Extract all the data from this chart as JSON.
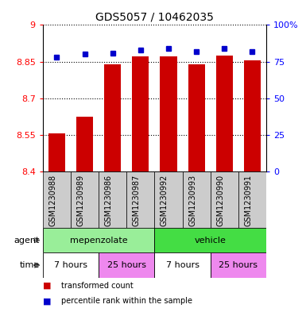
{
  "title": "GDS5057 / 10462035",
  "samples": [
    "GSM1230988",
    "GSM1230989",
    "GSM1230986",
    "GSM1230987",
    "GSM1230992",
    "GSM1230993",
    "GSM1230990",
    "GSM1230991"
  ],
  "red_values": [
    8.555,
    8.625,
    8.84,
    8.87,
    8.87,
    8.84,
    8.875,
    8.855
  ],
  "blue_values": [
    78,
    80,
    81,
    83,
    84,
    82,
    84,
    82
  ],
  "ylim_left": [
    8.4,
    9.0
  ],
  "ylim_right": [
    0,
    100
  ],
  "yticks_left": [
    8.4,
    8.55,
    8.7,
    8.85,
    9.0
  ],
  "ytick_labels_left": [
    "8.4",
    "8.55",
    "8.7",
    "8.85",
    "9"
  ],
  "yticks_right": [
    0,
    25,
    50,
    75,
    100
  ],
  "ytick_labels_right": [
    "0",
    "25",
    "50",
    "75",
    "100%"
  ],
  "bar_color": "#CC0000",
  "dot_color": "#0000CC",
  "bar_width": 0.6,
  "agent_groups": [
    {
      "label": "mepenzolate",
      "start": 0,
      "end": 4,
      "color": "#99EE99"
    },
    {
      "label": "vehicle",
      "start": 4,
      "end": 8,
      "color": "#44DD44"
    }
  ],
  "time_groups": [
    {
      "label": "7 hours",
      "start": 0,
      "end": 2,
      "color": "#FFFFFF"
    },
    {
      "label": "25 hours",
      "start": 2,
      "end": 4,
      "color": "#EE88EE"
    },
    {
      "label": "7 hours",
      "start": 4,
      "end": 6,
      "color": "#FFFFFF"
    },
    {
      "label": "25 hours",
      "start": 6,
      "end": 8,
      "color": "#EE88EE"
    }
  ],
  "legend_red": "transformed count",
  "legend_blue": "percentile rank within the sample",
  "label_agent": "agent",
  "label_time": "time",
  "sample_label_fontsize": 7,
  "tick_fontsize": 8,
  "title_fontsize": 10
}
